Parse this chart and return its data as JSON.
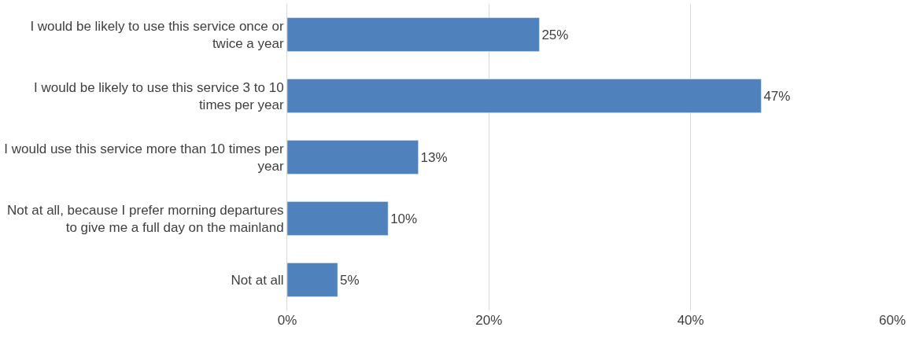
{
  "chart_data": {
    "type": "bar",
    "orientation": "horizontal",
    "categories": [
      "I would be likely to use this service once or twice a year",
      "I would be likely to use this service 3 to 10 times per year",
      "I would use this service more than 10 times per year",
      "Not at all, because I prefer morning departures to give me a full day on the mainland",
      "Not at all"
    ],
    "values": [
      25,
      47,
      13,
      10,
      5
    ],
    "value_labels": [
      "25%",
      "47%",
      "13%",
      "10%",
      "5%"
    ],
    "color": "#4f81bd",
    "xlim": [
      0,
      60
    ],
    "xticks": [
      {
        "value": 0,
        "label": "0%"
      },
      {
        "value": 20,
        "label": "20%"
      },
      {
        "value": 40,
        "label": "40%"
      },
      {
        "value": 60,
        "label": "60%"
      }
    ],
    "grid": "x"
  }
}
